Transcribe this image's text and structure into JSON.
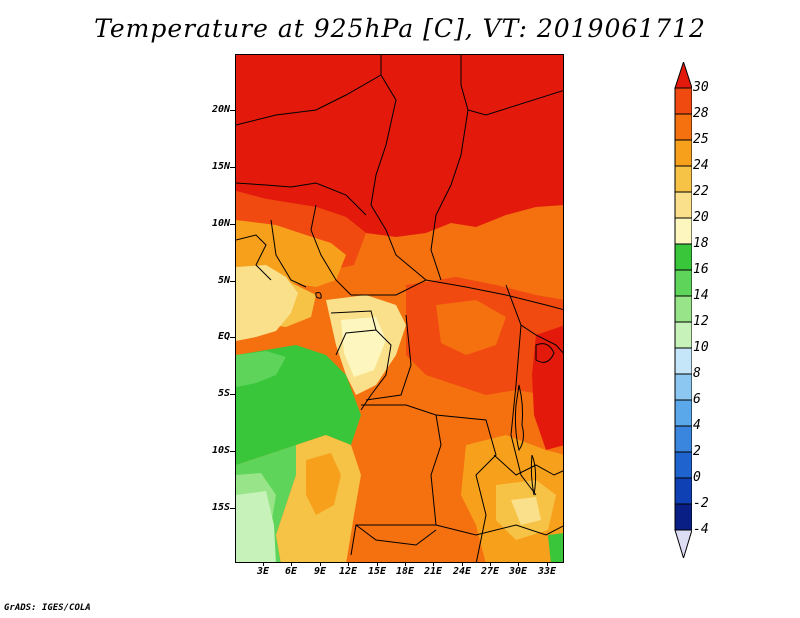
{
  "title": "Temperature at 925hPa [C], VT: 2019061712",
  "credit": "GrADS: IGES/COLA",
  "lat_ticks": [
    "20N",
    "15N",
    "10N",
    "5N",
    "EQ",
    "5S",
    "10S",
    "15S"
  ],
  "lon_ticks": [
    "3E",
    "6E",
    "9E",
    "12E",
    "15E",
    "18E",
    "21E",
    "24E",
    "27E",
    "30E",
    "33E"
  ],
  "colorbar": {
    "labels": [
      "30",
      "28",
      "25",
      "24",
      "22",
      "20",
      "18",
      "16",
      "14",
      "12",
      "10",
      "8",
      "6",
      "4",
      "2",
      "0",
      "-2",
      "-4"
    ],
    "colors": [
      "#e31a0b",
      "#f04a10",
      "#f5700f",
      "#f7a01c",
      "#f6c347",
      "#fae08a",
      "#fdf7bf",
      "#39c63b",
      "#5ed45b",
      "#97e588",
      "#c7f2b9",
      "#c5e6f9",
      "#8cc7f1",
      "#5aa7ea",
      "#3a85dd",
      "#1f63cf",
      "#0f41b5",
      "#0a1f85",
      "#ddddf5"
    ]
  }
}
